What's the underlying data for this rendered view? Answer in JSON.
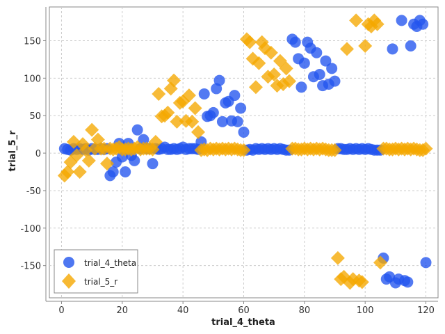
{
  "chart_data": {
    "type": "scatter",
    "xlabel": "trial_4_theta",
    "ylabel": "trial_5_r",
    "xlim": [
      -4,
      124
    ],
    "ylim": [
      -193,
      195
    ],
    "x_ticks": [
      0,
      20,
      40,
      60,
      80,
      100,
      120
    ],
    "y_ticks": [
      -150,
      -100,
      -50,
      0,
      50,
      100,
      150
    ],
    "grid": true,
    "legend_position": "bottom-left",
    "series": [
      {
        "name": "trial_4_theta",
        "marker": "circle",
        "color": "#2255ee",
        "points": [
          [
            1,
            6
          ],
          [
            2,
            5
          ],
          [
            3,
            4
          ],
          [
            4,
            6
          ],
          [
            5,
            5
          ],
          [
            6,
            6
          ],
          [
            7,
            5
          ],
          [
            8,
            6
          ],
          [
            9,
            4
          ],
          [
            10,
            6
          ],
          [
            11,
            5
          ],
          [
            12,
            5
          ],
          [
            13,
            6
          ],
          [
            14,
            5
          ],
          [
            15,
            6
          ],
          [
            16,
            -30
          ],
          [
            17,
            -25
          ],
          [
            18,
            -12
          ],
          [
            19,
            13
          ],
          [
            20,
            -5
          ],
          [
            21,
            -25
          ],
          [
            22,
            13
          ],
          [
            23,
            -3
          ],
          [
            24,
            -10
          ],
          [
            25,
            31
          ],
          [
            26,
            6
          ],
          [
            27,
            18
          ],
          [
            28,
            6
          ],
          [
            29,
            6
          ],
          [
            30,
            -14
          ],
          [
            31,
            6
          ],
          [
            32,
            5
          ],
          [
            33,
            6
          ],
          [
            34,
            8
          ],
          [
            35,
            5
          ],
          [
            36,
            5
          ],
          [
            37,
            6
          ],
          [
            38,
            5
          ],
          [
            39,
            6
          ],
          [
            40,
            8
          ],
          [
            41,
            5
          ],
          [
            42,
            6
          ],
          [
            43,
            6
          ],
          [
            44,
            6
          ],
          [
            45,
            5
          ],
          [
            46,
            15
          ],
          [
            47,
            79
          ],
          [
            48,
            49
          ],
          [
            49,
            50
          ],
          [
            50,
            54
          ],
          [
            51,
            86
          ],
          [
            52,
            97
          ],
          [
            53,
            42
          ],
          [
            54,
            67
          ],
          [
            55,
            69
          ],
          [
            56,
            43
          ],
          [
            57,
            77
          ],
          [
            58,
            42
          ],
          [
            59,
            60
          ],
          [
            60,
            28
          ],
          [
            61,
            4
          ],
          [
            62,
            5
          ],
          [
            63,
            4
          ],
          [
            64,
            6
          ],
          [
            65,
            5
          ],
          [
            66,
            6
          ],
          [
            67,
            5
          ],
          [
            68,
            6
          ],
          [
            69,
            5
          ],
          [
            70,
            6
          ],
          [
            71,
            5
          ],
          [
            72,
            6
          ],
          [
            73,
            5
          ],
          [
            74,
            4
          ],
          [
            75,
            4
          ],
          [
            76,
            152
          ],
          [
            77,
            148
          ],
          [
            78,
            126
          ],
          [
            79,
            88
          ],
          [
            80,
            120
          ],
          [
            81,
            148
          ],
          [
            82,
            140
          ],
          [
            83,
            102
          ],
          [
            84,
            134
          ],
          [
            85,
            105
          ],
          [
            86,
            90
          ],
          [
            87,
            123
          ],
          [
            88,
            92
          ],
          [
            89,
            113
          ],
          [
            90,
            96
          ],
          [
            91,
            6
          ],
          [
            92,
            6
          ],
          [
            93,
            5
          ],
          [
            94,
            5
          ],
          [
            95,
            6
          ],
          [
            96,
            5
          ],
          [
            97,
            6
          ],
          [
            98,
            5
          ],
          [
            99,
            6
          ],
          [
            100,
            5
          ],
          [
            101,
            6
          ],
          [
            102,
            5
          ],
          [
            103,
            4
          ],
          [
            104,
            4
          ],
          [
            105,
            4
          ],
          [
            106,
            -140
          ],
          [
            107,
            -168
          ],
          [
            108,
            -165
          ],
          [
            109,
            139
          ],
          [
            110,
            -173
          ],
          [
            111,
            -168
          ],
          [
            112,
            177
          ],
          [
            113,
            -170
          ],
          [
            114,
            -172
          ],
          [
            115,
            143
          ],
          [
            116,
            172
          ],
          [
            117,
            169
          ],
          [
            118,
            177
          ],
          [
            119,
            172
          ],
          [
            120,
            -146
          ]
        ]
      },
      {
        "name": "trial_5_r",
        "marker": "diamond",
        "color": "#f5a800",
        "points": [
          [
            1,
            -30
          ],
          [
            2,
            -25
          ],
          [
            3,
            -12
          ],
          [
            4,
            15
          ],
          [
            5,
            -3
          ],
          [
            6,
            -25
          ],
          [
            7,
            12
          ],
          [
            8,
            4
          ],
          [
            9,
            -10
          ],
          [
            10,
            31
          ],
          [
            11,
            6
          ],
          [
            12,
            18
          ],
          [
            13,
            6
          ],
          [
            14,
            6
          ],
          [
            15,
            -14
          ],
          [
            16,
            6
          ],
          [
            17,
            5
          ],
          [
            18,
            6
          ],
          [
            19,
            8
          ],
          [
            20,
            5
          ],
          [
            21,
            5
          ],
          [
            22,
            6
          ],
          [
            23,
            5
          ],
          [
            24,
            6
          ],
          [
            25,
            8
          ],
          [
            26,
            5
          ],
          [
            27,
            6
          ],
          [
            28,
            6
          ],
          [
            29,
            6
          ],
          [
            30,
            5
          ],
          [
            31,
            15
          ],
          [
            32,
            79
          ],
          [
            33,
            49
          ],
          [
            34,
            50
          ],
          [
            35,
            54
          ],
          [
            36,
            86
          ],
          [
            37,
            97
          ],
          [
            38,
            42
          ],
          [
            39,
            67
          ],
          [
            40,
            69
          ],
          [
            41,
            43
          ],
          [
            42,
            77
          ],
          [
            43,
            42
          ],
          [
            44,
            60
          ],
          [
            45,
            28
          ],
          [
            46,
            4
          ],
          [
            47,
            5
          ],
          [
            48,
            4
          ],
          [
            49,
            6
          ],
          [
            50,
            5
          ],
          [
            51,
            6
          ],
          [
            52,
            5
          ],
          [
            53,
            6
          ],
          [
            54,
            5
          ],
          [
            55,
            6
          ],
          [
            56,
            5
          ],
          [
            57,
            6
          ],
          [
            58,
            5
          ],
          [
            59,
            4
          ],
          [
            60,
            4
          ],
          [
            61,
            152
          ],
          [
            62,
            148
          ],
          [
            63,
            126
          ],
          [
            64,
            88
          ],
          [
            65,
            120
          ],
          [
            66,
            148
          ],
          [
            67,
            140
          ],
          [
            68,
            102
          ],
          [
            69,
            134
          ],
          [
            70,
            105
          ],
          [
            71,
            90
          ],
          [
            72,
            123
          ],
          [
            73,
            92
          ],
          [
            74,
            113
          ],
          [
            75,
            96
          ],
          [
            76,
            6
          ],
          [
            77,
            6
          ],
          [
            78,
            5
          ],
          [
            79,
            5
          ],
          [
            80,
            6
          ],
          [
            81,
            5
          ],
          [
            82,
            6
          ],
          [
            83,
            5
          ],
          [
            84,
            6
          ],
          [
            85,
            5
          ],
          [
            86,
            6
          ],
          [
            87,
            5
          ],
          [
            88,
            4
          ],
          [
            89,
            4
          ],
          [
            90,
            4
          ],
          [
            91,
            -140
          ],
          [
            92,
            -168
          ],
          [
            93,
            -165
          ],
          [
            94,
            139
          ],
          [
            95,
            -173
          ],
          [
            96,
            -168
          ],
          [
            97,
            177
          ],
          [
            98,
            -170
          ],
          [
            99,
            -172
          ],
          [
            100,
            143
          ],
          [
            101,
            172
          ],
          [
            102,
            169
          ],
          [
            103,
            177
          ],
          [
            104,
            172
          ],
          [
            105,
            -146
          ],
          [
            106,
            6
          ],
          [
            107,
            6
          ],
          [
            108,
            5
          ],
          [
            109,
            5
          ],
          [
            110,
            6
          ],
          [
            111,
            5
          ],
          [
            112,
            6
          ],
          [
            113,
            5
          ],
          [
            114,
            6
          ],
          [
            115,
            5
          ],
          [
            116,
            6
          ],
          [
            117,
            5
          ],
          [
            118,
            4
          ],
          [
            119,
            4
          ],
          [
            120,
            6
          ]
        ]
      }
    ]
  }
}
